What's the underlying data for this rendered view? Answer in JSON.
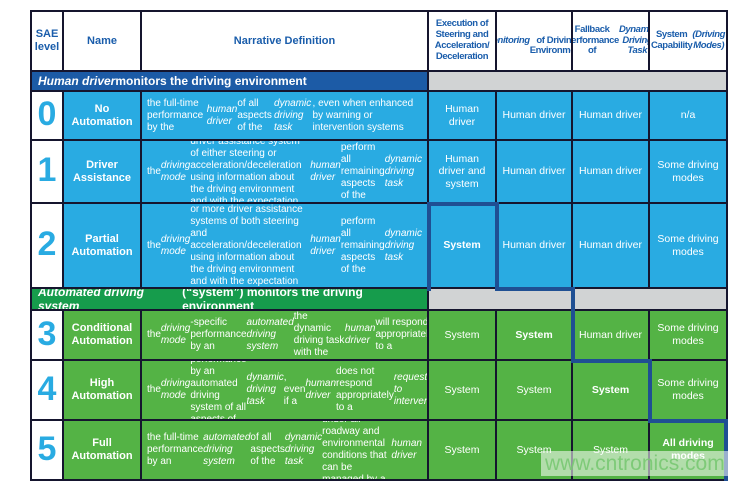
{
  "page": {
    "watermark": "www.cntronics.com"
  },
  "colors": {
    "cyan": "#29abe2",
    "green": "#54b345",
    "section_blue": "#1c5ba6",
    "section_green": "#169c4c",
    "header_text": "#1a5dab",
    "highlight": "#1f4f93",
    "border": "#15152e",
    "gray": "#d1d3d4",
    "watermark": "#79c873"
  },
  "table": {
    "header": [
      {
        "html": "SAE<br>level"
      },
      {
        "html": "Name"
      },
      {
        "html": "Narrative Definition"
      },
      {
        "html": "Execution of<br>Steering and<br>Acceleration/<br>Deceleration"
      },
      {
        "html": "<i>Monitoring</i><br>of Driving<br>Environment"
      },
      {
        "html": "Fallback<br>Performance<br>of <i>Dynamic<br>Driving Task</i>"
      },
      {
        "html": "System<br>Capability<br><i>(Driving<br>Modes)</i>"
      }
    ],
    "sections": [
      {
        "html": "<i>Human driver</i> monitors the driving environment"
      },
      {
        "html": "<i>Automated driving system</i> (“system”) monitors the driving environment"
      }
    ],
    "rows": [
      {
        "level": "0",
        "name": "No Automation",
        "narrative": "the full-time performance by the <i>human driver</i> of all aspects of the <i>dynamic driving task</i>, even when enhanced by warning or intervention systems",
        "execution": "Human driver",
        "monitoring": "Human driver",
        "fallback": "Human driver",
        "capability": "n/a"
      },
      {
        "level": "1",
        "name": "Driver Assistance",
        "narrative": "the <i>driving mode</i>-specific execution by a driver assistance system of either steering or acceleration/deceleration using information about the driving environment and with the expectation that the <i>human driver</i> perform all remaining aspects of the <i>dynamic driving task</i>",
        "execution": "Human driver and system",
        "monitoring": "Human driver",
        "fallback": "Human driver",
        "capability": "Some driving modes"
      },
      {
        "level": "2",
        "name": "Partial Automation",
        "narrative": "the <i>driving mode</i>-specific execution by one or more driver assistance systems of both steering and acceleration/deceleration using information about the driving environment and with the expectation that the <i>human driver</i> perform all remaining aspects of the <i>dynamic driving task</i>",
        "execution": "<b>System</b>",
        "monitoring": "Human driver",
        "fallback": "Human driver",
        "capability": "Some driving modes"
      },
      {
        "level": "3",
        "name": "Conditional Automation",
        "narrative": "the <i>driving mode</i>-specific performance by an <i>automated driving system</i> of all aspects of the dynamic driving task with the expectation that the <i>human driver</i> will respond appropriately to a <i>request to intervene</i>",
        "execution": "System",
        "monitoring": "<b>System</b>",
        "fallback": "Human driver",
        "capability": "Some driving modes"
      },
      {
        "level": "4",
        "name": "High Automation",
        "narrative": "the <i>driving mode</i>-specific performance by an automated driving system of all aspects of the <i>dynamic driving task</i>, even if a <i>human driver</i> does not respond appropriately to a <i>request to intervene</i>",
        "execution": "System",
        "monitoring": "System",
        "fallback": "<b>System</b>",
        "capability": "Some driving modes"
      },
      {
        "level": "5",
        "name": "Full Automation",
        "narrative": "the full-time performance by an <i>automated driving system</i> of all aspects of the <i>dynamic driving task</i> under all roadway and environmental conditions that can be managed by a <i>human driver</i>",
        "execution": "System",
        "monitoring": "System",
        "fallback": "System",
        "capability": "<b>All driving modes</b>"
      }
    ]
  }
}
